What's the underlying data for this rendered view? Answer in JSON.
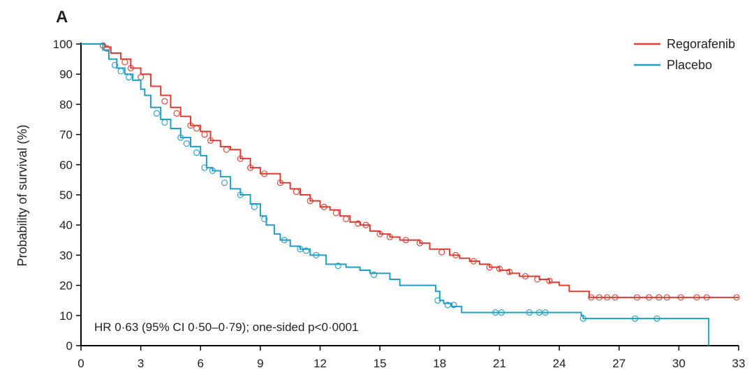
{
  "chart_data": {
    "type": "line",
    "subtype": "kaplan-meier",
    "panel_label": "A",
    "title": "",
    "xlabel": "",
    "ylabel": "Probability of survival (%)",
    "xlim": [
      0,
      33
    ],
    "ylim": [
      0,
      100
    ],
    "x_ticks": [
      0,
      3,
      6,
      9,
      12,
      15,
      18,
      21,
      24,
      27,
      30,
      33
    ],
    "y_ticks": [
      0,
      10,
      20,
      30,
      40,
      50,
      60,
      70,
      80,
      90,
      100
    ],
    "legend_position": "top-right",
    "annotation": "HR 0·63 (95% CI 0·50–0·79); one-sided p<0·0001",
    "series": [
      {
        "name": "Regorafenib",
        "color": "#e03c31",
        "steps": [
          [
            0,
            100
          ],
          [
            1.2,
            99
          ],
          [
            1.5,
            97
          ],
          [
            2,
            95
          ],
          [
            2.5,
            92
          ],
          [
            3,
            90
          ],
          [
            3.5,
            86
          ],
          [
            4,
            83
          ],
          [
            4.5,
            79
          ],
          [
            5,
            76
          ],
          [
            5.5,
            73
          ],
          [
            6,
            71
          ],
          [
            6.5,
            68
          ],
          [
            7,
            66
          ],
          [
            7.5,
            65
          ],
          [
            8,
            62
          ],
          [
            8.5,
            59
          ],
          [
            9,
            57
          ],
          [
            10,
            54
          ],
          [
            10.5,
            52
          ],
          [
            11,
            50
          ],
          [
            11.5,
            48
          ],
          [
            12,
            46
          ],
          [
            12.5,
            45
          ],
          [
            13,
            43
          ],
          [
            13.5,
            41
          ],
          [
            14,
            40
          ],
          [
            14.5,
            38
          ],
          [
            15,
            37
          ],
          [
            15.5,
            36
          ],
          [
            16,
            35
          ],
          [
            17,
            34
          ],
          [
            17.5,
            32
          ],
          [
            18.5,
            30
          ],
          [
            19,
            29
          ],
          [
            19.5,
            28
          ],
          [
            20,
            27
          ],
          [
            20.5,
            26
          ],
          [
            21,
            25
          ],
          [
            21.5,
            24
          ],
          [
            22,
            23
          ],
          [
            23,
            22
          ],
          [
            23.5,
            21
          ],
          [
            24,
            20
          ],
          [
            24.5,
            18
          ],
          [
            25.5,
            16
          ],
          [
            33,
            16
          ]
        ],
        "censored": [
          [
            1.1,
            99.5
          ],
          [
            1.3,
            98.5
          ],
          [
            2.2,
            94
          ],
          [
            2.5,
            92
          ],
          [
            3,
            89
          ],
          [
            4.2,
            81
          ],
          [
            4.8,
            77
          ],
          [
            5.5,
            73
          ],
          [
            5.8,
            72
          ],
          [
            6.2,
            70
          ],
          [
            6.5,
            68
          ],
          [
            7.3,
            65
          ],
          [
            8,
            62
          ],
          [
            8.5,
            59
          ],
          [
            9.2,
            57
          ],
          [
            10,
            54
          ],
          [
            10.8,
            51
          ],
          [
            11.5,
            48
          ],
          [
            12.2,
            46
          ],
          [
            12.8,
            44
          ],
          [
            13.3,
            42
          ],
          [
            13.9,
            40.5
          ],
          [
            14.3,
            40
          ],
          [
            15,
            37
          ],
          [
            15.5,
            36
          ],
          [
            16.3,
            35
          ],
          [
            17,
            34
          ],
          [
            18.1,
            31
          ],
          [
            18.8,
            30
          ],
          [
            19.7,
            28
          ],
          [
            20.5,
            26
          ],
          [
            21,
            25.5
          ],
          [
            21.5,
            24.5
          ],
          [
            22.3,
            23
          ],
          [
            22.9,
            22
          ],
          [
            23.5,
            21.5
          ],
          [
            25.6,
            16
          ],
          [
            26,
            16
          ],
          [
            26.4,
            16
          ],
          [
            26.8,
            16
          ],
          [
            27.9,
            16
          ],
          [
            28.5,
            16
          ],
          [
            29,
            16
          ],
          [
            29.4,
            16
          ],
          [
            30.1,
            16
          ],
          [
            30.9,
            16
          ],
          [
            31.4,
            16
          ],
          [
            32.9,
            16
          ]
        ]
      },
      {
        "name": "Placebo",
        "color": "#1e9fc6",
        "steps": [
          [
            0,
            100
          ],
          [
            1.1,
            98
          ],
          [
            1.4,
            95
          ],
          [
            1.8,
            92
          ],
          [
            2.2,
            90
          ],
          [
            2.6,
            88
          ],
          [
            3,
            85
          ],
          [
            3.2,
            83
          ],
          [
            3.5,
            79
          ],
          [
            4,
            75
          ],
          [
            4.5,
            72
          ],
          [
            5,
            69
          ],
          [
            5.5,
            66
          ],
          [
            6,
            63
          ],
          [
            6.3,
            59
          ],
          [
            6.6,
            58
          ],
          [
            7,
            56
          ],
          [
            7.5,
            52
          ],
          [
            8,
            50
          ],
          [
            8.5,
            47
          ],
          [
            9,
            43
          ],
          [
            9.3,
            40
          ],
          [
            9.7,
            37
          ],
          [
            10,
            35
          ],
          [
            10.5,
            33
          ],
          [
            11,
            32
          ],
          [
            11.5,
            30
          ],
          [
            12.3,
            27
          ],
          [
            13.3,
            26
          ],
          [
            14,
            25
          ],
          [
            14.5,
            24
          ],
          [
            15.5,
            22
          ],
          [
            16,
            20
          ],
          [
            17.8,
            18
          ],
          [
            18,
            15
          ],
          [
            18.2,
            14
          ],
          [
            18.6,
            13
          ],
          [
            19.1,
            11
          ],
          [
            25.1,
            10
          ],
          [
            25.2,
            9
          ],
          [
            31.5,
            9
          ],
          [
            31.5,
            0
          ]
        ],
        "censored": [
          [
            1.7,
            93
          ],
          [
            2,
            91
          ],
          [
            2.4,
            89
          ],
          [
            3.8,
            77
          ],
          [
            4.2,
            74
          ],
          [
            5,
            69
          ],
          [
            5.3,
            67
          ],
          [
            5.8,
            64
          ],
          [
            6.2,
            59
          ],
          [
            6.6,
            58
          ],
          [
            7.2,
            54
          ],
          [
            8,
            50
          ],
          [
            8.7,
            46
          ],
          [
            9.2,
            42
          ],
          [
            10.2,
            35
          ],
          [
            11,
            32
          ],
          [
            11.3,
            31.5
          ],
          [
            11.8,
            30
          ],
          [
            12.9,
            26.5
          ],
          [
            14.7,
            23.5
          ],
          [
            17.9,
            15
          ],
          [
            18.4,
            13.5
          ],
          [
            18.7,
            13.5
          ],
          [
            20.8,
            11
          ],
          [
            21.1,
            11
          ],
          [
            22.5,
            11
          ],
          [
            23,
            11
          ],
          [
            23.3,
            11
          ],
          [
            25.2,
            9
          ],
          [
            27.8,
            9
          ],
          [
            28.9,
            9
          ]
        ]
      }
    ]
  }
}
